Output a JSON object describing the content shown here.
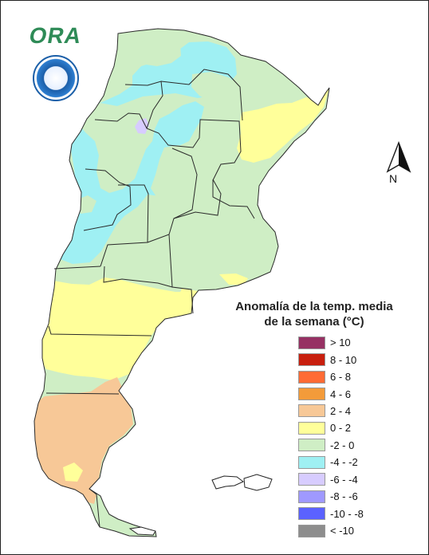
{
  "logo": {
    "text": "ORA"
  },
  "compass": {
    "label": "N"
  },
  "legend": {
    "title_line_1": "Anomalía de la temp. media",
    "title_line_2": "de la semana (°C)",
    "items": [
      {
        "label": "> 10",
        "color": "#963163"
      },
      {
        "label": "8 - 10",
        "color": "#c81f0e"
      },
      {
        "label": "6 - 8",
        "color": "#ff6b35"
      },
      {
        "label": "4 - 6",
        "color": "#f39b3a"
      },
      {
        "label": "2 - 4",
        "color": "#f7c897"
      },
      {
        "label": "0 - 2",
        "color": "#ffff9a"
      },
      {
        "label": "-2 - 0",
        "color": "#cfeec5"
      },
      {
        "label": "-4 - -2",
        "color": "#9ff0f3"
      },
      {
        "label": "-6 - -4",
        "color": "#d7ccff"
      },
      {
        "label": "-8 - -6",
        "color": "#9f99ff"
      },
      {
        "label": "-10 - -8",
        "color": "#5b62ff"
      },
      {
        "label": "< -10",
        "color": "#8d8d8d"
      }
    ]
  }
}
